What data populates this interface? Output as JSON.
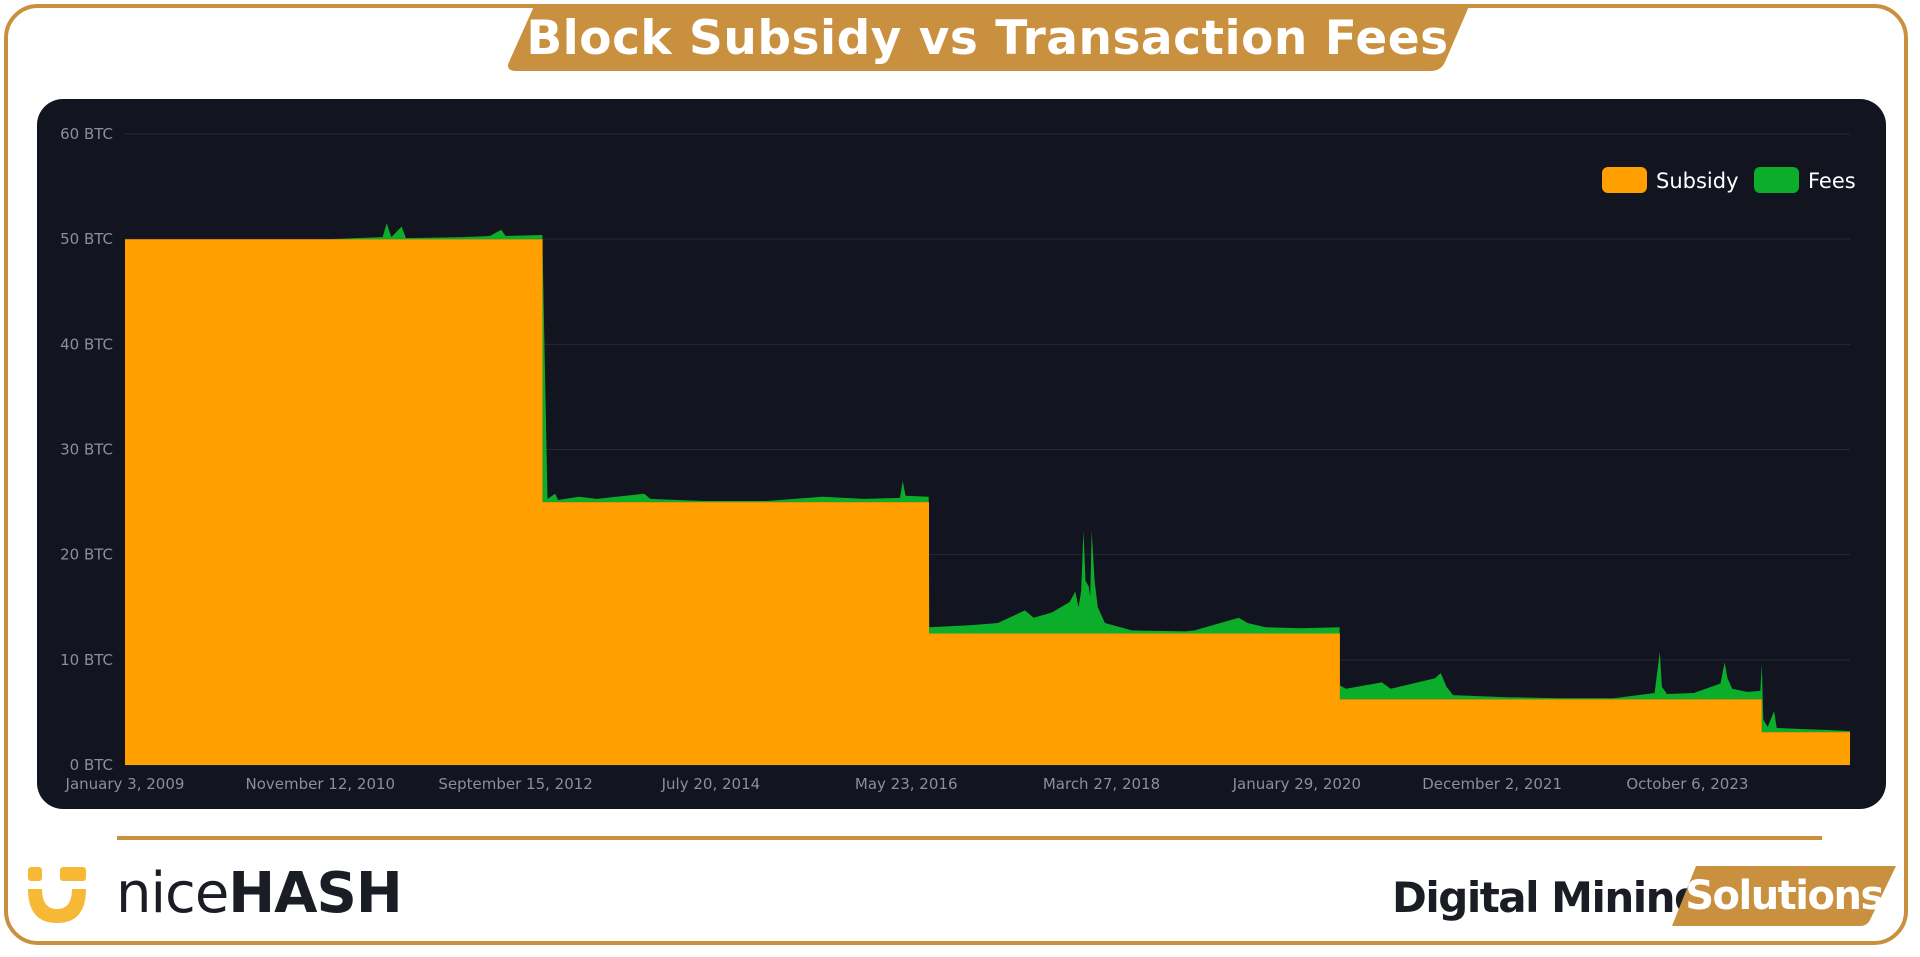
{
  "header": {
    "title": "Block Subsidy vs Transaction Fees"
  },
  "brand": {
    "nicehash_thin": "nice",
    "nicehash_bold": "HASH",
    "dms_main": "Digital Mining",
    "dms_tag": "Solutions",
    "accent_color": "#c9913f",
    "logo_color": "#f7b935"
  },
  "chart_data": {
    "type": "area",
    "title": "",
    "xlabel": "",
    "ylabel": "",
    "ylim": [
      0,
      60
    ],
    "y_ticks": [
      "0 BTC",
      "10 BTC",
      "20 BTC",
      "30 BTC",
      "40 BTC",
      "50 BTC",
      "60 BTC"
    ],
    "x_ticks": [
      "January 3, 2009",
      "November 12, 2010",
      "September 15, 2012",
      "July 20, 2014",
      "May 23, 2016",
      "March 27, 2018",
      "January 29, 2020",
      "December 2, 2021",
      "October 6, 2023"
    ],
    "x_range": [
      "2009-01-03",
      "2025-02-15"
    ],
    "stacked": true,
    "legend_position": "top-right",
    "grid": true,
    "colors": {
      "Subsidy": "#ffa000",
      "Fees": "#0bad2b",
      "background": "#12141f"
    },
    "series": [
      {
        "name": "Subsidy",
        "points": [
          [
            "2009-01-03",
            50
          ],
          [
            "2012-11-28",
            50
          ],
          [
            "2012-11-28",
            25
          ],
          [
            "2016-07-09",
            25
          ],
          [
            "2016-07-09",
            12.5
          ],
          [
            "2020-05-11",
            12.5
          ],
          [
            "2020-05-11",
            6.25
          ],
          [
            "2024-04-20",
            6.25
          ],
          [
            "2024-04-20",
            3.125
          ],
          [
            "2025-02-15",
            3.125
          ]
        ]
      },
      {
        "name": "Fees",
        "points": [
          [
            "2009-01-03",
            0
          ],
          [
            "2010-12-01",
            0
          ],
          [
            "2011-03-01",
            0.1
          ],
          [
            "2011-06-01",
            0.2
          ],
          [
            "2011-06-15",
            1.5
          ],
          [
            "2011-07-01",
            0.2
          ],
          [
            "2011-08-05",
            1.2
          ],
          [
            "2011-08-20",
            0.1
          ],
          [
            "2012-03-01",
            0.2
          ],
          [
            "2012-06-01",
            0.3
          ],
          [
            "2012-07-10",
            0.9
          ],
          [
            "2012-07-25",
            0.3
          ],
          [
            "2012-11-27",
            0.4
          ],
          [
            "2012-12-15",
            0.3
          ],
          [
            "2013-01-10",
            0.8
          ],
          [
            "2013-01-20",
            0.2
          ],
          [
            "2013-04-01",
            0.5
          ],
          [
            "2013-06-01",
            0.3
          ],
          [
            "2013-11-10",
            0.8
          ],
          [
            "2013-12-01",
            0.3
          ],
          [
            "2014-06-01",
            0.1
          ],
          [
            "2015-01-01",
            0.1
          ],
          [
            "2015-07-10",
            0.5
          ],
          [
            "2015-12-01",
            0.3
          ],
          [
            "2016-04-01",
            0.4
          ],
          [
            "2016-04-10",
            2.0
          ],
          [
            "2016-04-20",
            0.6
          ],
          [
            "2016-07-08",
            0.5
          ],
          [
            "2016-07-10",
            0.6
          ],
          [
            "2016-12-01",
            0.8
          ],
          [
            "2017-03-01",
            1.0
          ],
          [
            "2017-06-01",
            2.2
          ],
          [
            "2017-07-01",
            1.5
          ],
          [
            "2017-09-01",
            2.0
          ],
          [
            "2017-11-01",
            3.0
          ],
          [
            "2017-11-20",
            4.0
          ],
          [
            "2017-12-01",
            2.5
          ],
          [
            "2017-12-10",
            4.0
          ],
          [
            "2017-12-18",
            9.8
          ],
          [
            "2017-12-25",
            5.0
          ],
          [
            "2018-01-05",
            4.5
          ],
          [
            "2018-01-10",
            3.5
          ],
          [
            "2018-01-15",
            9.8
          ],
          [
            "2018-01-25",
            5.0
          ],
          [
            "2018-02-05",
            2.5
          ],
          [
            "2018-03-01",
            1.0
          ],
          [
            "2018-06-01",
            0.3
          ],
          [
            "2018-12-01",
            0.2
          ],
          [
            "2019-01-01",
            0.3
          ],
          [
            "2019-06-01",
            1.5
          ],
          [
            "2019-07-01",
            1.0
          ],
          [
            "2019-09-01",
            0.6
          ],
          [
            "2020-01-01",
            0.5
          ],
          [
            "2020-05-10",
            0.6
          ],
          [
            "2020-05-12",
            1.3
          ],
          [
            "2020-06-01",
            1.0
          ],
          [
            "2020-10-01",
            1.6
          ],
          [
            "2020-11-01",
            1.0
          ],
          [
            "2021-01-01",
            1.4
          ],
          [
            "2021-04-01",
            2.0
          ],
          [
            "2021-04-20",
            2.5
          ],
          [
            "2021-05-10",
            1.2
          ],
          [
            "2021-06-01",
            0.4
          ],
          [
            "2021-12-01",
            0.2
          ],
          [
            "2022-06-01",
            0.1
          ],
          [
            "2022-12-01",
            0.1
          ],
          [
            "2023-04-20",
            0.6
          ],
          [
            "2023-05-08",
            4.5
          ],
          [
            "2023-05-15",
            1.2
          ],
          [
            "2023-06-01",
            0.5
          ],
          [
            "2023-09-01",
            0.6
          ],
          [
            "2023-12-01",
            1.5
          ],
          [
            "2023-12-15",
            3.5
          ],
          [
            "2023-12-25",
            2.0
          ],
          [
            "2024-01-10",
            1.0
          ],
          [
            "2024-03-01",
            0.7
          ],
          [
            "2024-04-15",
            0.8
          ],
          [
            "2024-04-20",
            6.5
          ],
          [
            "2024-04-25",
            1.2
          ],
          [
            "2024-05-10",
            0.5
          ],
          [
            "2024-06-01",
            2.0
          ],
          [
            "2024-06-10",
            0.4
          ],
          [
            "2024-09-01",
            0.3
          ],
          [
            "2024-12-01",
            0.2
          ],
          [
            "2025-02-15",
            0.1
          ]
        ]
      }
    ]
  }
}
